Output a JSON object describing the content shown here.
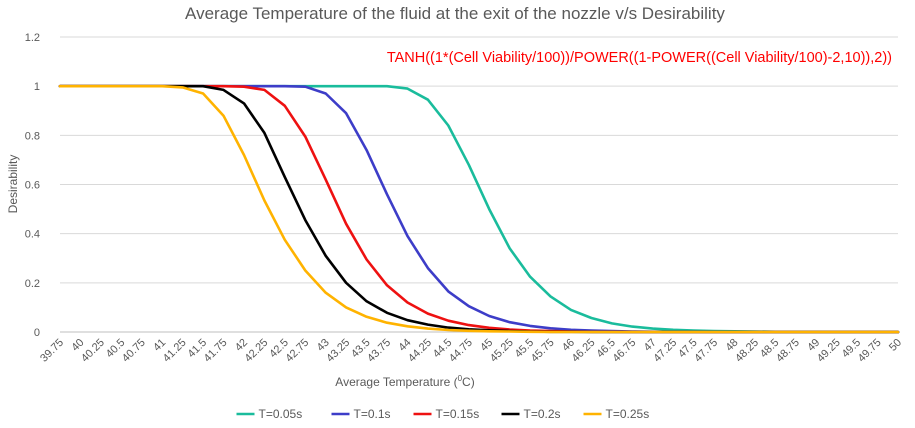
{
  "chart_data": {
    "type": "line",
    "title": "Average Temperature of the fluid at the exit of the nozzle v/s Desirability",
    "xlabel": "Average Temperature (",
    "xlabel_sup": "0",
    "xlabel_end": "C)",
    "ylabel": "Desirability",
    "annotation": "TANH((1*(Cell Viability/100))/POWER((1-POWER((Cell Viability/100)-2,10)),2))",
    "ylim": [
      0,
      1.2
    ],
    "yticks": [
      "0",
      "0.2",
      "0.4",
      "0.6",
      "0.8",
      "1",
      "1.2"
    ],
    "grid": true,
    "legend_position": "bottom",
    "x": [
      "39.75",
      "40",
      "40.25",
      "40.5",
      "40.75",
      "41",
      "41.25",
      "41.5",
      "41.75",
      "42",
      "42.25",
      "42.5",
      "42.75",
      "43",
      "43.25",
      "43.5",
      "43.75",
      "44",
      "44.25",
      "44.5",
      "44.75",
      "45",
      "45.25",
      "45.5",
      "45.75",
      "46",
      "46.25",
      "46.5",
      "46.75",
      "47",
      "47.25",
      "47.5",
      "47.75",
      "48",
      "48.25",
      "48.5",
      "48.75",
      "49",
      "49.25",
      "49.5",
      "49.75",
      "50"
    ],
    "series": [
      {
        "name": "T=0.05s",
        "color": "#1abc9c",
        "values": [
          1,
          1,
          1,
          1,
          1,
          1,
          1,
          1,
          1,
          1,
          1,
          1,
          1,
          1,
          1,
          1,
          1,
          0.99,
          0.945,
          0.84,
          0.68,
          0.5,
          0.34,
          0.225,
          0.145,
          0.09,
          0.057,
          0.035,
          0.022,
          0.014,
          0.009,
          0.006,
          0.004,
          0.003,
          0.002,
          0.001,
          0.001,
          0.001,
          0,
          0,
          0,
          0
        ]
      },
      {
        "name": "T=0.1s",
        "color": "#3d3dc8",
        "values": [
          1,
          1,
          1,
          1,
          1,
          1,
          1,
          1,
          1,
          1,
          1,
          1,
          0.998,
          0.97,
          0.89,
          0.74,
          0.56,
          0.39,
          0.26,
          0.165,
          0.105,
          0.065,
          0.04,
          0.025,
          0.015,
          0.009,
          0.006,
          0.004,
          0.002,
          0.001,
          0.001,
          0.001,
          0,
          0,
          0,
          0,
          0,
          0,
          0,
          0,
          0,
          0
        ]
      },
      {
        "name": "T=0.15s",
        "color": "#ee1111",
        "values": [
          1,
          1,
          1,
          1,
          1,
          1,
          1,
          1,
          1,
          0.998,
          0.985,
          0.92,
          0.795,
          0.62,
          0.44,
          0.295,
          0.19,
          0.12,
          0.075,
          0.046,
          0.028,
          0.017,
          0.01,
          0.006,
          0.004,
          0.002,
          0.001,
          0.001,
          0,
          0,
          0,
          0,
          0,
          0,
          0,
          0,
          0,
          0,
          0,
          0,
          0,
          0
        ]
      },
      {
        "name": "T=0.2s",
        "color": "#000000",
        "values": [
          1,
          1,
          1,
          1,
          1,
          1,
          1,
          1,
          0.985,
          0.93,
          0.81,
          0.63,
          0.455,
          0.31,
          0.2,
          0.125,
          0.078,
          0.048,
          0.03,
          0.018,
          0.011,
          0.007,
          0.004,
          0.002,
          0.001,
          0.001,
          0,
          0,
          0,
          0,
          0,
          0,
          0,
          0,
          0,
          0,
          0,
          0,
          0,
          0,
          0,
          0
        ]
      },
      {
        "name": "T=0.25s",
        "color": "#ffb300",
        "values": [
          1,
          1,
          1,
          1,
          1,
          1,
          0.995,
          0.97,
          0.88,
          0.72,
          0.535,
          0.375,
          0.25,
          0.16,
          0.1,
          0.062,
          0.038,
          0.023,
          0.014,
          0.008,
          0.005,
          0.003,
          0.002,
          0.001,
          0,
          0,
          0,
          0,
          0,
          0,
          0,
          0,
          0,
          0,
          0,
          0,
          0,
          0,
          0,
          0,
          0,
          0
        ]
      }
    ]
  }
}
